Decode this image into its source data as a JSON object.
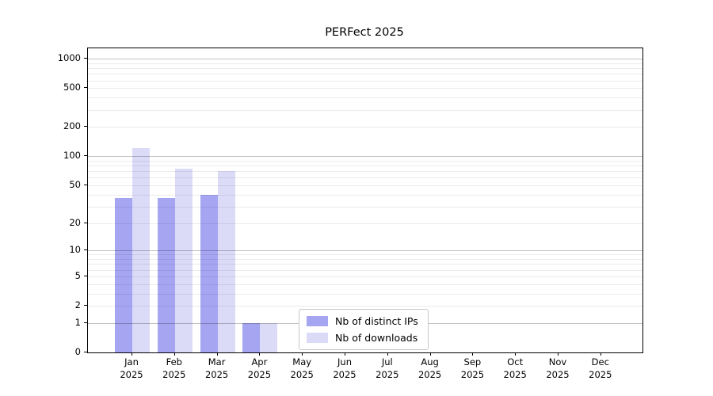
{
  "chart_data": {
    "type": "bar",
    "title": "PERFect 2025",
    "categories": [
      {
        "month": "Jan",
        "year": "2025"
      },
      {
        "month": "Feb",
        "year": "2025"
      },
      {
        "month": "Mar",
        "year": "2025"
      },
      {
        "month": "Apr",
        "year": "2025"
      },
      {
        "month": "May",
        "year": "2025"
      },
      {
        "month": "Jun",
        "year": "2025"
      },
      {
        "month": "Jul",
        "year": "2025"
      },
      {
        "month": "Aug",
        "year": "2025"
      },
      {
        "month": "Sep",
        "year": "2025"
      },
      {
        "month": "Oct",
        "year": "2025"
      },
      {
        "month": "Nov",
        "year": "2025"
      },
      {
        "month": "Dec",
        "year": "2025"
      }
    ],
    "series": [
      {
        "name": "Nb of distinct IPs",
        "color": "#a5a5f2",
        "values": [
          37,
          37,
          40,
          1,
          0,
          0,
          0,
          0,
          0,
          0,
          0,
          0
        ]
      },
      {
        "name": "Nb of downloads",
        "color": "#dbdbf8",
        "values": [
          122,
          74,
          71,
          1,
          0,
          0,
          0,
          0,
          0,
          0,
          0,
          0
        ]
      }
    ],
    "y_axis": {
      "scale": "log1p",
      "ticks": [
        0,
        1,
        2,
        5,
        10,
        20,
        50,
        100,
        200,
        500,
        1000
      ],
      "major_gridlines": [
        1,
        10,
        100,
        1000
      ],
      "ylim": [
        0,
        1280
      ]
    },
    "xlabel": "",
    "ylabel": "",
    "grid": true,
    "legend_position": "lower-center"
  }
}
